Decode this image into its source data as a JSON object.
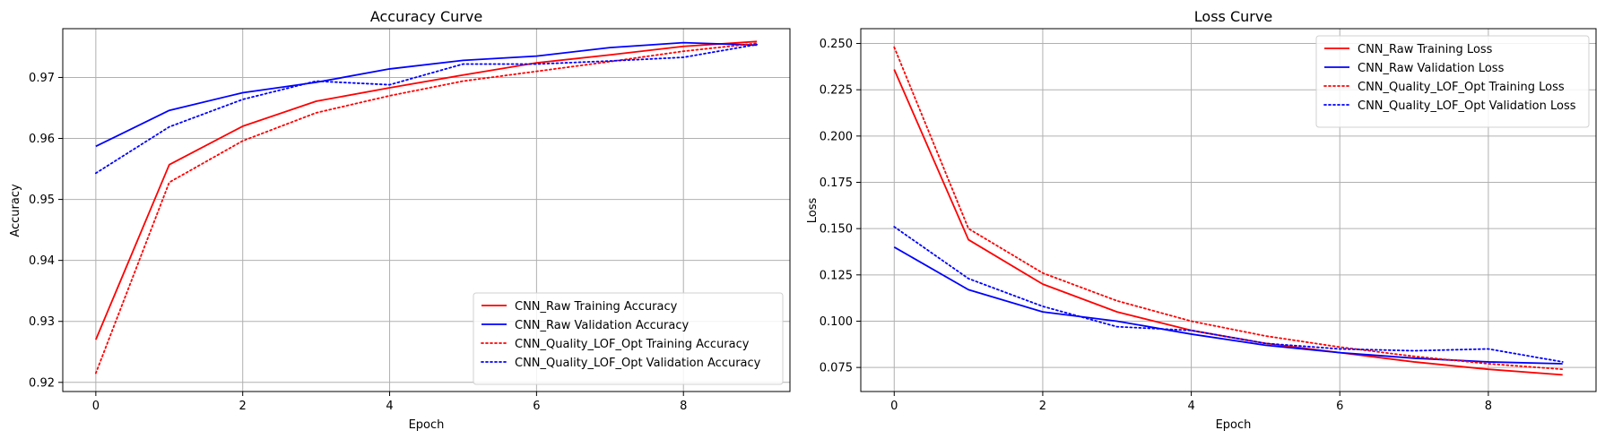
{
  "chart_data": [
    {
      "type": "line",
      "title": "Accuracy Curve",
      "xlabel": "Epoch",
      "ylabel": "Accuracy",
      "xlim": [
        -0.45,
        9.45
      ],
      "ylim": [
        0.9185,
        0.978
      ],
      "xticks": [
        0,
        2,
        4,
        6,
        8
      ],
      "yticks": [
        0.92,
        0.93,
        0.94,
        0.95,
        0.96,
        0.97
      ],
      "tick_format": 2,
      "grid": true,
      "legend_position": "lower right",
      "x": [
        0,
        1,
        2,
        3,
        4,
        5,
        6,
        7,
        8,
        9
      ],
      "series": [
        {
          "name": "CNN_Raw Training Accuracy",
          "color": "#ff0000",
          "dash": "solid",
          "values": [
            0.927,
            0.9557,
            0.962,
            0.9661,
            0.9683,
            0.9704,
            0.9724,
            0.9737,
            0.9751,
            0.9759
          ]
        },
        {
          "name": "CNN_Raw Validation Accuracy",
          "color": "#0000ff",
          "dash": "solid",
          "values": [
            0.9587,
            0.9646,
            0.9675,
            0.9692,
            0.9714,
            0.9728,
            0.9735,
            0.9749,
            0.9757,
            0.9753
          ]
        },
        {
          "name": "CNN_Quality_LOF_Opt Training Accuracy",
          "color": "#ff0000",
          "dash": "dotted",
          "values": [
            0.9215,
            0.9528,
            0.9596,
            0.9642,
            0.967,
            0.9694,
            0.971,
            0.9726,
            0.9743,
            0.9756
          ]
        },
        {
          "name": "CNN_Quality_LOF_Opt Validation Accuracy",
          "color": "#0000ff",
          "dash": "dotted",
          "values": [
            0.9543,
            0.9619,
            0.9664,
            0.9694,
            0.9688,
            0.9722,
            0.9722,
            0.9727,
            0.9733,
            0.9754
          ]
        }
      ]
    },
    {
      "type": "line",
      "title": "Loss Curve",
      "xlabel": "Epoch",
      "ylabel": "Loss",
      "xlim": [
        -0.45,
        9.45
      ],
      "ylim": [
        0.062,
        0.258
      ],
      "xticks": [
        0,
        2,
        4,
        6,
        8
      ],
      "yticks": [
        0.075,
        0.1,
        0.125,
        0.15,
        0.175,
        0.2,
        0.225,
        0.25
      ],
      "tick_format": 3,
      "grid": true,
      "legend_position": "upper right",
      "x": [
        0,
        1,
        2,
        3,
        4,
        5,
        6,
        7,
        8,
        9
      ],
      "series": [
        {
          "name": "CNN_Raw Training Loss",
          "color": "#ff0000",
          "dash": "solid",
          "values": [
            0.236,
            0.144,
            0.12,
            0.105,
            0.095,
            0.088,
            0.083,
            0.078,
            0.074,
            0.071
          ]
        },
        {
          "name": "CNN_Raw Validation Loss",
          "color": "#0000ff",
          "dash": "solid",
          "values": [
            0.14,
            0.117,
            0.105,
            0.1,
            0.093,
            0.087,
            0.083,
            0.08,
            0.078,
            0.077
          ]
        },
        {
          "name": "CNN_Quality_LOF_Opt Training Loss",
          "color": "#ff0000",
          "dash": "dotted",
          "values": [
            0.248,
            0.15,
            0.126,
            0.111,
            0.1,
            0.092,
            0.086,
            0.081,
            0.077,
            0.074
          ]
        },
        {
          "name": "CNN_Quality_LOF_Opt Validation Loss",
          "color": "#0000ff",
          "dash": "dotted",
          "values": [
            0.151,
            0.123,
            0.108,
            0.097,
            0.095,
            0.088,
            0.085,
            0.084,
            0.085,
            0.078
          ]
        }
      ]
    }
  ]
}
